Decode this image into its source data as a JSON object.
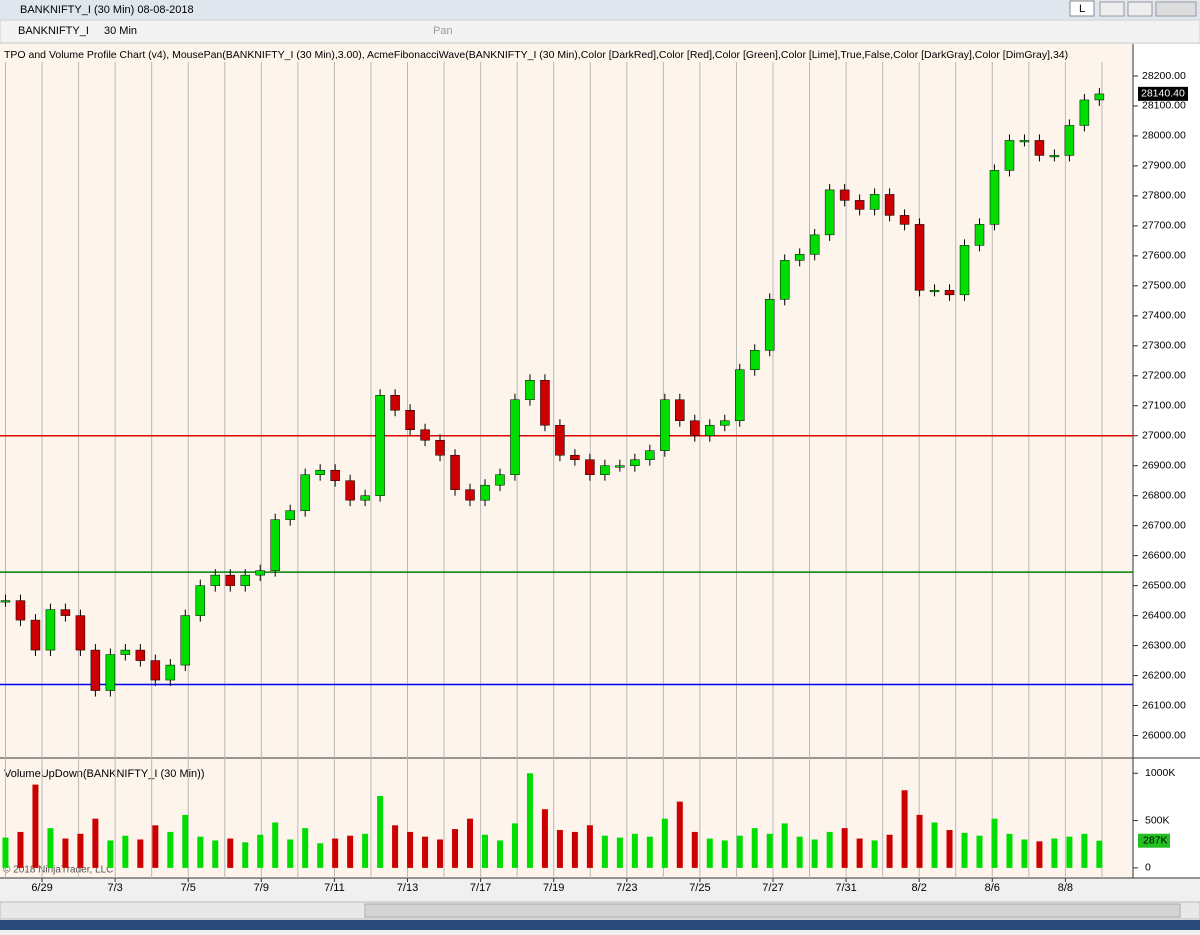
{
  "window": {
    "title": "BANKNIFTY_I (30 Min)  08-08-2018",
    "layout_button": "L"
  },
  "toolbar": {
    "instrument": "BANKNIFTY_I",
    "interval": "30 Min",
    "pan": "Pan"
  },
  "copyright": "© 2018 NinjaTrader, LLC",
  "chart_data": [
    {
      "type": "candlestick",
      "subtitle": "TPO and Volume Profile Chart (v4), MousePan(BANKNIFTY_I (30 Min),3.00), AcmeFibonacciWave(BANKNIFTY_I (30 Min),Color [DarkRed],Color [Red],Color [Green],Color [Lime],True,False,Color [DarkGray],Color [DimGray],34)",
      "x": [
        0,
        0.41,
        0.82,
        1.23,
        1.64,
        2.05,
        2.46,
        2.87,
        3.28,
        3.69,
        4.1,
        4.51,
        4.92,
        5.33,
        5.74,
        6.15,
        6.56,
        6.97,
        7.38,
        7.79,
        8.2,
        8.61,
        9.02,
        9.43,
        9.84,
        10.25,
        10.66,
        11.07,
        11.48,
        11.89,
        12.3,
        12.71,
        13.12,
        13.53,
        13.94,
        14.35,
        14.76,
        15.17,
        15.58,
        15.99,
        16.4,
        16.81,
        17.22,
        17.63,
        18.04,
        18.45,
        18.86,
        19.27,
        19.68,
        20.09,
        20.5,
        20.91,
        21.32,
        21.73,
        22.14,
        22.55,
        22.96,
        23.37,
        23.78,
        24.19,
        24.6,
        25.01,
        25.42,
        25.83,
        26.24,
        26.65,
        27.06,
        27.47,
        27.88,
        28.29,
        28.7,
        29.11,
        29.52,
        29.93
      ],
      "values": [
        26450,
        26385,
        26285,
        26420,
        26400,
        26285,
        26150,
        26270,
        26285,
        26250,
        26185,
        26235,
        26400,
        26500,
        26535,
        26500,
        26535,
        26550,
        26720,
        26750,
        26870,
        26885,
        26850,
        26785,
        26800,
        27135,
        27085,
        27020,
        26985,
        26935,
        26820,
        26785,
        26835,
        26870,
        27120,
        27185,
        27035,
        26935,
        26920,
        26870,
        26900,
        26900,
        26920,
        26950,
        27120,
        27050,
        27000,
        27035,
        27050,
        27220,
        27285,
        27455,
        27585,
        27605,
        27670,
        27820,
        27785,
        27755,
        27805,
        27735,
        27705,
        27485,
        27485,
        27470,
        27635,
        27705,
        27885,
        27985,
        27985,
        27935,
        27935,
        28035,
        28120,
        28140
      ],
      "up_color": "#00dd00",
      "down_color": "#cc0000",
      "xlim": [
        -0.15,
        30.85
      ],
      "xticks": [
        {
          "value": 1,
          "label": "6/29"
        },
        {
          "value": 3,
          "label": "7/3"
        },
        {
          "value": 5,
          "label": "7/5"
        },
        {
          "value": 7,
          "label": "7/9"
        },
        {
          "value": 9,
          "label": "7/11"
        },
        {
          "value": 11,
          "label": "7/13"
        },
        {
          "value": 13,
          "label": "7/17"
        },
        {
          "value": 15,
          "label": "7/19"
        },
        {
          "value": 17,
          "label": "7/23"
        },
        {
          "value": 19,
          "label": "7/25"
        },
        {
          "value": 21,
          "label": "7/27"
        },
        {
          "value": 23,
          "label": "7/31"
        },
        {
          "value": 25,
          "label": "8/2"
        },
        {
          "value": 27,
          "label": "8/6"
        },
        {
          "value": 29,
          "label": "8/8"
        }
      ],
      "x_minor_grid": [
        0,
        2,
        4,
        6,
        8,
        10,
        12,
        14,
        16,
        18,
        20,
        22,
        24,
        26,
        28,
        30
      ],
      "ylim": [
        25925,
        28300
      ],
      "yticks": [
        {
          "value": 26000,
          "label": "26000.00"
        },
        {
          "value": 26100,
          "label": "26100.00"
        },
        {
          "value": 26200,
          "label": "26200.00"
        },
        {
          "value": 26300,
          "label": "26300.00"
        },
        {
          "value": 26400,
          "label": "26400.00"
        },
        {
          "value": 26500,
          "label": "26500.00"
        },
        {
          "value": 26600,
          "label": "26600.00"
        },
        {
          "value": 26700,
          "label": "26700.00"
        },
        {
          "value": 26800,
          "label": "26800.00"
        },
        {
          "value": 26900,
          "label": "26900.00"
        },
        {
          "value": 27000,
          "label": "27000.00"
        },
        {
          "value": 27100,
          "label": "27100.00"
        },
        {
          "value": 27200,
          "label": "27200.00"
        },
        {
          "value": 27300,
          "label": "27300.00"
        },
        {
          "value": 27400,
          "label": "27400.00"
        },
        {
          "value": 27500,
          "label": "27500.00"
        },
        {
          "value": 27600,
          "label": "27600.00"
        },
        {
          "value": 27700,
          "label": "27700.00"
        },
        {
          "value": 27800,
          "label": "27800.00"
        },
        {
          "value": 27900,
          "label": "27900.00"
        },
        {
          "value": 28000,
          "label": "28000.00"
        },
        {
          "value": 28100,
          "label": "28100.00"
        },
        {
          "value": 28200,
          "label": "28200.00"
        }
      ],
      "hlines": [
        {
          "value": 27000,
          "color": "#dd0000"
        },
        {
          "value": 26545,
          "color": "#008000"
        },
        {
          "value": 26170,
          "color": "#0000ee"
        }
      ],
      "last_price": {
        "value": 28140.4,
        "label": "28140.40"
      },
      "grid": true
    },
    {
      "type": "bar",
      "title": "VolumeUpDown(BANKNIFTY_I (30 Min))",
      "values": [
        320000,
        380000,
        880000,
        420000,
        310000,
        360000,
        520000,
        290000,
        340000,
        300000,
        450000,
        380000,
        560000,
        330000,
        290000,
        310000,
        270000,
        350000,
        480000,
        300000,
        420000,
        260000,
        310000,
        340000,
        360000,
        760000,
        450000,
        380000,
        330000,
        300000,
        410000,
        520000,
        350000,
        290000,
        470000,
        1000000,
        620000,
        400000,
        380000,
        450000,
        340000,
        320000,
        360000,
        330000,
        520000,
        700000,
        380000,
        310000,
        290000,
        340000,
        420000,
        360000,
        470000,
        330000,
        300000,
        380000,
        420000,
        310000,
        290000,
        350000,
        820000,
        560000,
        480000,
        400000,
        370000,
        340000,
        520000,
        360000,
        300000,
        280000,
        310000,
        330000,
        360000,
        287000
      ],
      "ylim": [
        -107000,
        1140000
      ],
      "yticks": [
        0,
        {
          "value": 500000,
          "label": "500K"
        },
        {
          "value": 1000000,
          "label": "1000K"
        }
      ],
      "last_volume": {
        "value": 287000,
        "label": "287K"
      },
      "grid": true
    }
  ]
}
